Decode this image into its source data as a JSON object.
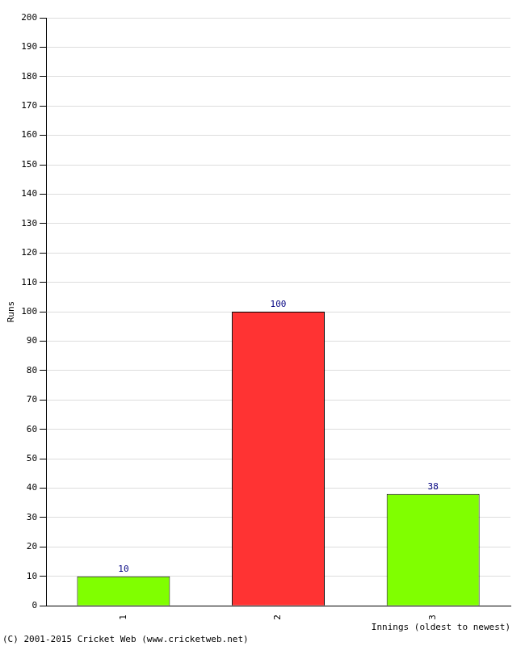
{
  "chart_data": {
    "type": "bar",
    "categories": [
      "1",
      "2",
      "3"
    ],
    "values": [
      10,
      100,
      38
    ],
    "colors": [
      "#80ff00",
      "#ff3333",
      "#80ff00"
    ],
    "x_label": "Innings (oldest to newest)",
    "y_label": "Runs",
    "annotation": "(C) 2001-2015 Cricket Web (www.cricketweb.net)",
    "ylim": [
      0,
      200
    ],
    "yticks": [
      0,
      10,
      20,
      30,
      40,
      50,
      60,
      70,
      80,
      90,
      100,
      110,
      120,
      130,
      140,
      150,
      160,
      170,
      180,
      190,
      200
    ],
    "grid": true,
    "data_labels": true
  }
}
